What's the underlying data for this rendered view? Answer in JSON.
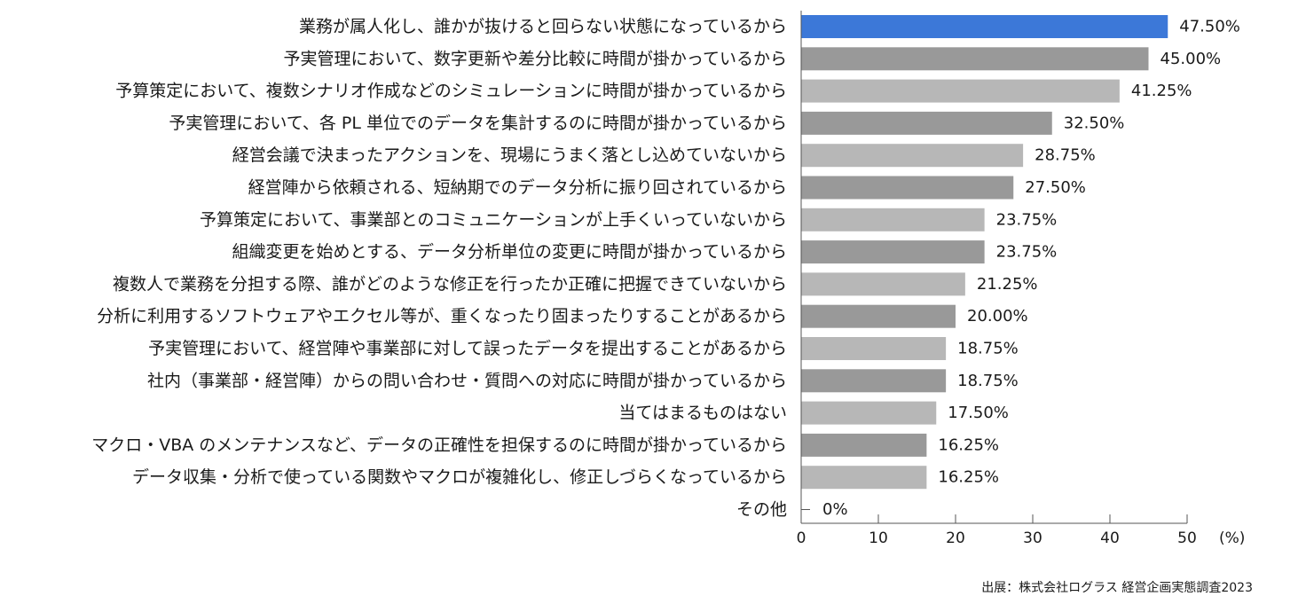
{
  "chart_data": {
    "type": "bar",
    "orientation": "horizontal",
    "categories": [
      "業務が属人化し、誰かが抜けると回らない状態になっているから",
      "予実管理において、数字更新や差分比較に時間が掛かっているから",
      "予算策定において、複数シナリオ作成などのシミュレーションに時間が掛かっているから",
      "予実管理において、各 PL 単位でのデータを集計するのに時間が掛かっているから",
      "経営会議で決まったアクションを、現場にうまく落とし込めていないから",
      "経営陣から依頼される、短納期でのデータ分析に振り回されているから",
      "予算策定において、事業部とのコミュニケーションが上手くいっていないから",
      "組織変更を始めとする、データ分析単位の変更に時間が掛かっているから",
      "複数人で業務を分担する際、誰がどのような修正を行ったか正確に把握できていないから",
      "分析に利用するソフトウェアやエクセル等が、重くなったり固まったりすることがあるから",
      "予実管理において、経営陣や事業部に対して誤ったデータを提出することがあるから",
      "社内（事業部・経営陣）からの問い合わせ・質問への対応に時間が掛かっているから",
      "当てはまるものはない",
      "マクロ・VBA のメンテナンスなど、データの正確性を担保するのに時間が掛かっているから",
      "データ収集・分析で使っている関数やマクロが複雑化し、修正しづらくなっているから",
      "その他"
    ],
    "values": [
      47.5,
      45.0,
      41.25,
      32.5,
      28.75,
      27.5,
      23.75,
      23.75,
      21.25,
      20.0,
      18.75,
      18.75,
      17.5,
      16.25,
      16.25,
      0
    ],
    "value_labels": [
      "47.50%",
      "45.00%",
      "41.25%",
      "32.50%",
      "28.75%",
      "27.50%",
      "23.75%",
      "23.75%",
      "21.25%",
      "20.00%",
      "18.75%",
      "18.75%",
      "17.50%",
      "16.25%",
      "16.25%",
      "0%"
    ],
    "bar_colors": [
      "#3c78d8",
      "#999999",
      "#b7b7b7",
      "#999999",
      "#b7b7b7",
      "#999999",
      "#b7b7b7",
      "#999999",
      "#b7b7b7",
      "#999999",
      "#b7b7b7",
      "#999999",
      "#b7b7b7",
      "#999999",
      "#b7b7b7",
      "#999999"
    ],
    "xlim": [
      0,
      50
    ],
    "xticks": [
      0,
      10,
      20,
      30,
      40,
      50
    ],
    "xtick_labels": [
      "0",
      "10",
      "20",
      "30",
      "40",
      "50"
    ],
    "unit_label": "(%)",
    "grid": false,
    "axis_color": "#555555"
  },
  "source": "出展：株式会社ログラス 経営企画実態調査2023"
}
